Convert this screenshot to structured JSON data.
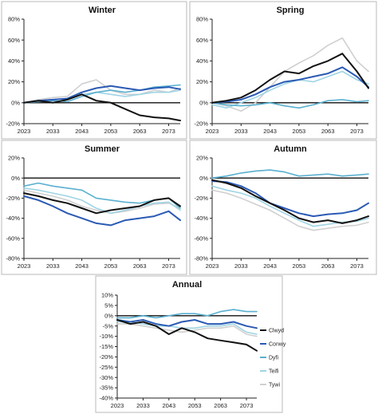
{
  "series_styles": [
    {
      "name": "Clwyd",
      "color": "#111111",
      "width": 2.0
    },
    {
      "name": "Conwy",
      "color": "#2a5ab4",
      "width": 2.0
    },
    {
      "name": "Dyfi",
      "color": "#5ab0d0",
      "width": 1.6
    },
    {
      "name": "Teifi",
      "color": "#9fd4e4",
      "width": 1.6
    },
    {
      "name": "Tywi",
      "color": "#d0d0d0",
      "width": 1.6
    }
  ],
  "chart_data": [
    {
      "type": "line",
      "title": "Winter",
      "x": [
        2023,
        2028,
        2033,
        2038,
        2043,
        2048,
        2053,
        2058,
        2063,
        2068,
        2073,
        2077
      ],
      "xticks": [
        "2023",
        "2033",
        "2043",
        "2053",
        "2063",
        "2073"
      ],
      "ylim": [
        -20,
        80
      ],
      "yticks": [
        "-20%",
        "0%",
        "20%",
        "40%",
        "60%",
        "80%"
      ],
      "series": [
        {
          "name": "Clwyd",
          "values": [
            0,
            2,
            0,
            3,
            8,
            2,
            0,
            -6,
            -12,
            -14,
            -15,
            -17
          ]
        },
        {
          "name": "Conwy",
          "values": [
            0,
            2,
            3,
            4,
            10,
            14,
            16,
            14,
            12,
            14,
            15,
            13
          ]
        },
        {
          "name": "Dyfi",
          "values": [
            0,
            1,
            2,
            1,
            6,
            10,
            12,
            10,
            12,
            15,
            16,
            17
          ]
        },
        {
          "name": "Teifi",
          "values": [
            0,
            2,
            3,
            4,
            8,
            10,
            8,
            6,
            8,
            10,
            10,
            12
          ]
        },
        {
          "name": "Tywi",
          "values": [
            0,
            3,
            5,
            6,
            18,
            22,
            12,
            8,
            8,
            12,
            10,
            14
          ]
        }
      ]
    },
    {
      "type": "line",
      "title": "Spring",
      "x": [
        2023,
        2028,
        2033,
        2038,
        2043,
        2048,
        2053,
        2058,
        2063,
        2068,
        2073,
        2077
      ],
      "xticks": [
        "2023",
        "2033",
        "2043",
        "2053",
        "2063",
        "2073"
      ],
      "ylim": [
        -20,
        80
      ],
      "yticks": [
        "-20%",
        "0%",
        "20%",
        "40%",
        "60%",
        "80%"
      ],
      "series": [
        {
          "name": "Clwyd",
          "values": [
            0,
            2,
            5,
            12,
            22,
            30,
            28,
            35,
            40,
            47,
            30,
            14
          ]
        },
        {
          "name": "Conwy",
          "values": [
            0,
            1,
            3,
            8,
            15,
            20,
            22,
            25,
            28,
            34,
            25,
            15
          ]
        },
        {
          "name": "Dyfi",
          "values": [
            0,
            -2,
            -3,
            -2,
            0,
            -3,
            -5,
            -2,
            2,
            3,
            1,
            2
          ]
        },
        {
          "name": "Teifi",
          "values": [
            -2,
            -5,
            0,
            5,
            12,
            18,
            22,
            20,
            25,
            30,
            22,
            18
          ]
        },
        {
          "name": "Tywi",
          "values": [
            0,
            -3,
            -8,
            0,
            15,
            30,
            38,
            45,
            55,
            62,
            40,
            30
          ]
        }
      ]
    },
    {
      "type": "line",
      "title": "Summer",
      "x": [
        2023,
        2028,
        2033,
        2038,
        2043,
        2048,
        2053,
        2058,
        2063,
        2068,
        2073,
        2077
      ],
      "xticks": [
        "2023",
        "2033",
        "2043",
        "2053",
        "2063",
        "2073"
      ],
      "ylim": [
        -80,
        20
      ],
      "yticks": [
        "-80%",
        "-60%",
        "-40%",
        "-20%",
        "0%",
        "20%"
      ],
      "series": [
        {
          "name": "Clwyd",
          "values": [
            -15,
            -18,
            -22,
            -25,
            -30,
            -35,
            -32,
            -30,
            -28,
            -22,
            -20,
            -28
          ]
        },
        {
          "name": "Conwy",
          "values": [
            -18,
            -22,
            -28,
            -35,
            -40,
            -45,
            -47,
            -42,
            -40,
            -38,
            -33,
            -42
          ]
        },
        {
          "name": "Dyfi",
          "values": [
            -8,
            -5,
            -8,
            -10,
            -12,
            -20,
            -22,
            -24,
            -25,
            -22,
            -20,
            -30
          ]
        },
        {
          "name": "Teifi",
          "values": [
            -10,
            -12,
            -15,
            -18,
            -22,
            -30,
            -35,
            -32,
            -28,
            -25,
            -24,
            -32
          ]
        },
        {
          "name": "Tywi",
          "values": [
            -12,
            -15,
            -18,
            -22,
            -28,
            -32,
            -35,
            -33,
            -30,
            -26,
            -25,
            -30
          ]
        }
      ]
    },
    {
      "type": "line",
      "title": "Autumn",
      "x": [
        2023,
        2028,
        2033,
        2038,
        2043,
        2048,
        2053,
        2058,
        2063,
        2068,
        2073,
        2077
      ],
      "xticks": [
        "2023",
        "2033",
        "2043",
        "2053",
        "2063",
        "2073"
      ],
      "ylim": [
        -80,
        20
      ],
      "yticks": [
        "-80%",
        "-60%",
        "-40%",
        "-20%",
        "0%",
        "20%"
      ],
      "series": [
        {
          "name": "Clwyd",
          "values": [
            -2,
            -5,
            -10,
            -18,
            -25,
            -32,
            -40,
            -44,
            -42,
            -45,
            -42,
            -38
          ]
        },
        {
          "name": "Conwy",
          "values": [
            -3,
            -4,
            -8,
            -15,
            -25,
            -30,
            -35,
            -38,
            -36,
            -35,
            -32,
            -25
          ]
        },
        {
          "name": "Dyfi",
          "values": [
            0,
            2,
            5,
            7,
            8,
            6,
            2,
            3,
            4,
            2,
            3,
            4
          ]
        },
        {
          "name": "Teifi",
          "values": [
            -8,
            -12,
            -15,
            -20,
            -28,
            -35,
            -42,
            -48,
            -46,
            -44,
            -43,
            -40
          ]
        },
        {
          "name": "Tywi",
          "values": [
            -12,
            -15,
            -20,
            -26,
            -32,
            -40,
            -48,
            -52,
            -50,
            -48,
            -47,
            -44
          ]
        }
      ]
    },
    {
      "type": "line",
      "title": "Annual",
      "x": [
        2023,
        2028,
        2033,
        2038,
        2043,
        2048,
        2053,
        2058,
        2063,
        2068,
        2073,
        2077
      ],
      "xticks": [
        "2023",
        "2033",
        "2043",
        "2053",
        "2063",
        "2073"
      ],
      "ylim": [
        -40,
        10
      ],
      "yticks": [
        "-40%",
        "-35%",
        "-30%",
        "-25%",
        "-20%",
        "-15%",
        "-10%",
        "-5%",
        "0%",
        "5%",
        "10%"
      ],
      "legend": [
        "Clwyd",
        "Conwy",
        "Dyfi",
        "Teifi",
        "Tywi"
      ],
      "series": [
        {
          "name": "Clwyd",
          "values": [
            -2,
            -4,
            -3,
            -5,
            -9,
            -6,
            -8,
            -11,
            -12,
            -13,
            -14,
            -17
          ]
        },
        {
          "name": "Conwy",
          "values": [
            -2,
            -3,
            -2,
            -4,
            -5,
            -3,
            -2,
            -4,
            -4,
            -3,
            -5,
            -6
          ]
        },
        {
          "name": "Dyfi",
          "values": [
            -1,
            -1,
            0,
            -1,
            0,
            1,
            1,
            0,
            2,
            3,
            2,
            2
          ]
        },
        {
          "name": "Teifi",
          "values": [
            -3,
            -3,
            -4,
            -5,
            -5,
            -6,
            -6,
            -5,
            -5,
            -4,
            -8,
            -9
          ]
        },
        {
          "name": "Tywi",
          "values": [
            -4,
            -4,
            -5,
            -6,
            -7,
            -8,
            -7,
            -6,
            -6,
            -5,
            -9,
            -10
          ]
        }
      ]
    }
  ]
}
